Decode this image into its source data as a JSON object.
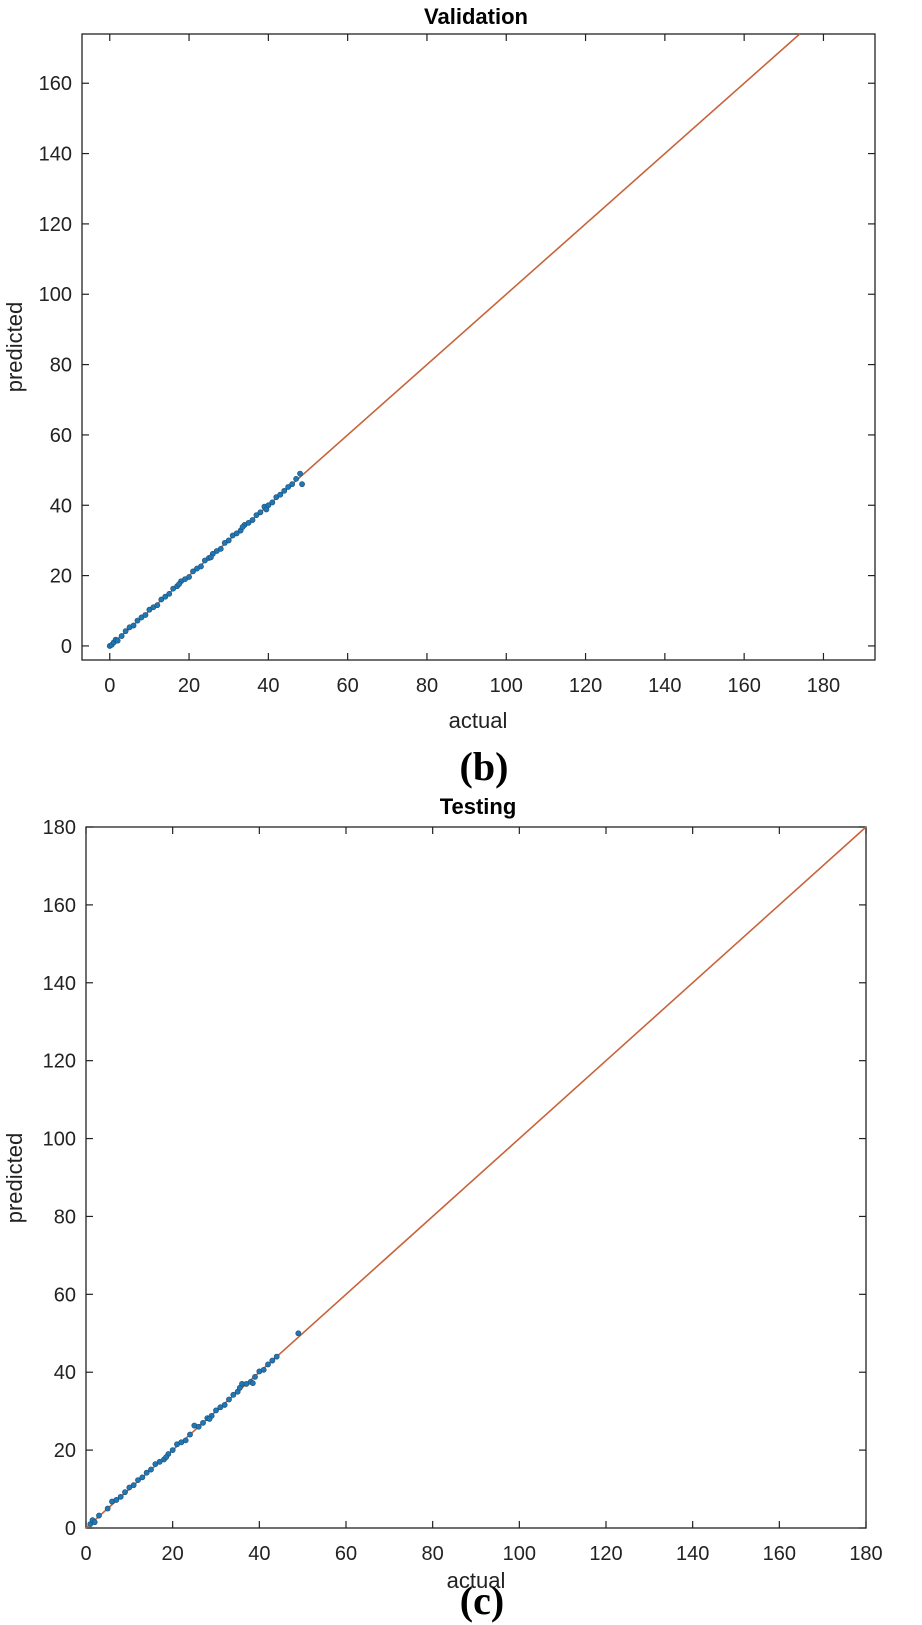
{
  "chart_data": [
    {
      "type": "scatter",
      "title": "Validation",
      "xlabel": "actual",
      "ylabel": "predicted",
      "xlim": [
        -7,
        193
      ],
      "ylim": [
        -4,
        174
      ],
      "xticks": [
        0,
        20,
        40,
        60,
        80,
        100,
        120,
        140,
        160,
        180
      ],
      "yticks": [
        0,
        20,
        40,
        60,
        80,
        100,
        120,
        140,
        160
      ],
      "caption": "(b)",
      "reference_line": {
        "from": [
          0,
          0
        ],
        "to": [
          174,
          174
        ],
        "color": "#c8643a"
      },
      "point_color": "#1f77b4",
      "points": [
        [
          0,
          0
        ],
        [
          0.5,
          0.3
        ],
        [
          1,
          1
        ],
        [
          1.5,
          1.8
        ],
        [
          2,
          1.5
        ],
        [
          3,
          2.8
        ],
        [
          4,
          4.2
        ],
        [
          5,
          5.3
        ],
        [
          6,
          5.8
        ],
        [
          7,
          7.2
        ],
        [
          8,
          8.1
        ],
        [
          9,
          8.8
        ],
        [
          10,
          10.3
        ],
        [
          11,
          11
        ],
        [
          12,
          11.6
        ],
        [
          13,
          13.2
        ],
        [
          14,
          14
        ],
        [
          15,
          14.8
        ],
        [
          16,
          16.3
        ],
        [
          17,
          17
        ],
        [
          18,
          18.4
        ],
        [
          19,
          19
        ],
        [
          20,
          19.6
        ],
        [
          21,
          21.2
        ],
        [
          22,
          22
        ],
        [
          23,
          22.6
        ],
        [
          24,
          24.3
        ],
        [
          25,
          25
        ],
        [
          26,
          26.2
        ],
        [
          27,
          27
        ],
        [
          28,
          27.6
        ],
        [
          29,
          29.3
        ],
        [
          30,
          30
        ],
        [
          31,
          31.4
        ],
        [
          32,
          32
        ],
        [
          33,
          32.8
        ],
        [
          34,
          34.4
        ],
        [
          35,
          35
        ],
        [
          36,
          35.8
        ],
        [
          37,
          37.2
        ],
        [
          38,
          38
        ],
        [
          39,
          39.6
        ],
        [
          40,
          40
        ],
        [
          41,
          40.8
        ],
        [
          42,
          42.3
        ],
        [
          43,
          43
        ],
        [
          44,
          44.1
        ],
        [
          45,
          45.2
        ],
        [
          46,
          46
        ],
        [
          47,
          47.5
        ],
        [
          48,
          49
        ],
        [
          48.5,
          46
        ],
        [
          17.5,
          17.6
        ],
        [
          25.5,
          25.2
        ],
        [
          33.5,
          33.8
        ],
        [
          39.5,
          38.8
        ]
      ]
    },
    {
      "type": "scatter",
      "title": "Testing",
      "xlabel": "actual",
      "ylabel": "predicted",
      "xlim": [
        0,
        180
      ],
      "ylim": [
        0,
        180
      ],
      "xticks": [
        0,
        20,
        40,
        60,
        80,
        100,
        120,
        140,
        160,
        180
      ],
      "yticks": [
        0,
        20,
        40,
        60,
        80,
        100,
        120,
        140,
        160,
        180
      ],
      "caption": "(c)",
      "reference_line": {
        "from": [
          0,
          0
        ],
        "to": [
          180,
          180
        ],
        "color": "#c8643a"
      },
      "point_color": "#1f77b4",
      "points": [
        [
          1,
          1
        ],
        [
          1.5,
          2
        ],
        [
          2,
          1.5
        ],
        [
          3,
          3.2
        ],
        [
          5,
          5
        ],
        [
          6,
          6.8
        ],
        [
          7,
          7.2
        ],
        [
          8,
          8
        ],
        [
          9,
          9.2
        ],
        [
          10,
          10.4
        ],
        [
          11,
          11
        ],
        [
          12,
          12.3
        ],
        [
          13,
          13
        ],
        [
          14,
          14.2
        ],
        [
          15,
          15
        ],
        [
          16,
          16.4
        ],
        [
          17,
          17
        ],
        [
          18,
          17.6
        ],
        [
          19,
          19
        ],
        [
          20,
          20
        ],
        [
          21,
          21.5
        ],
        [
          22,
          22
        ],
        [
          23,
          22.5
        ],
        [
          24,
          24
        ],
        [
          25,
          26.3
        ],
        [
          26,
          26
        ],
        [
          27,
          27
        ],
        [
          28,
          28.2
        ],
        [
          29,
          28.8
        ],
        [
          30,
          30.2
        ],
        [
          31,
          31
        ],
        [
          32,
          31.6
        ],
        [
          33,
          33
        ],
        [
          34,
          34.2
        ],
        [
          35,
          35
        ],
        [
          36,
          37
        ],
        [
          37,
          37
        ],
        [
          38,
          37.5
        ],
        [
          39,
          38.8
        ],
        [
          40,
          40.2
        ],
        [
          41,
          40.6
        ],
        [
          42,
          42
        ],
        [
          43,
          43
        ],
        [
          44,
          44
        ],
        [
          49,
          50
        ],
        [
          18.5,
          18.2
        ],
        [
          28.5,
          28
        ],
        [
          35.5,
          36
        ],
        [
          38.5,
          37.2
        ]
      ]
    }
  ]
}
